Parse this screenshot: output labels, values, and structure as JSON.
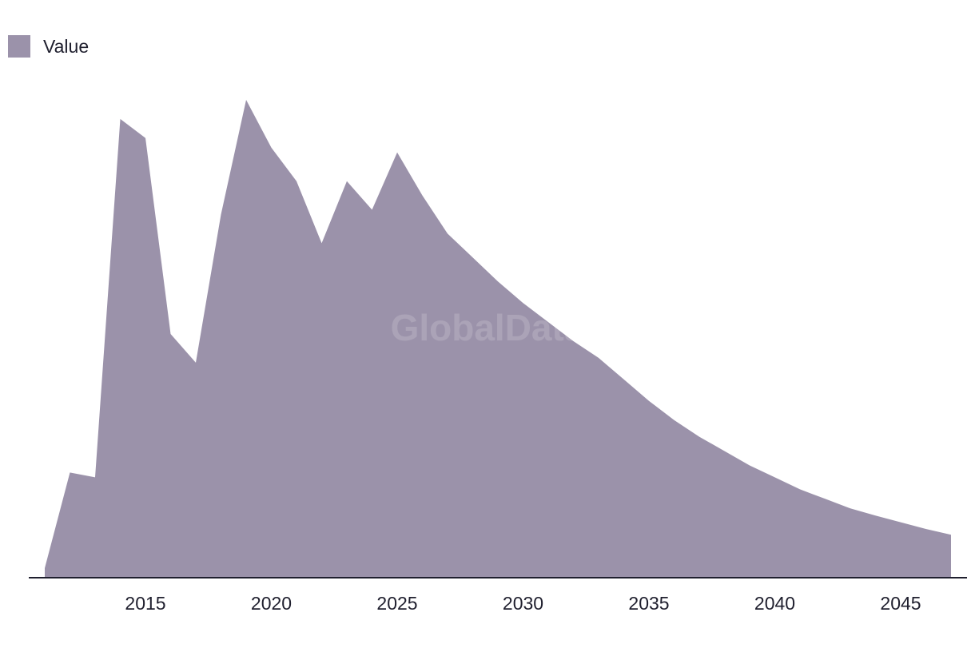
{
  "legend": {
    "label": "Value"
  },
  "watermark": "GlobalData",
  "colors": {
    "area": "#9b92aa",
    "axis": "#1f1f2e"
  },
  "chart_data": {
    "type": "area",
    "title": "",
    "xlabel": "",
    "ylabel": "",
    "ylim": [
      0,
      100
    ],
    "x_ticks": [
      2015,
      2020,
      2025,
      2030,
      2035,
      2040,
      2045
    ],
    "series": [
      {
        "name": "Value",
        "x": [
          2011,
          2012,
          2013,
          2014,
          2015,
          2016,
          2017,
          2018,
          2019,
          2020,
          2021,
          2022,
          2023,
          2024,
          2025,
          2026,
          2027,
          2028,
          2029,
          2030,
          2031,
          2032,
          2033,
          2034,
          2035,
          2036,
          2037,
          2038,
          2039,
          2040,
          2041,
          2042,
          2043,
          2044,
          2045,
          2046,
          2047
        ],
        "values": [
          2,
          22,
          21,
          96,
          92,
          51,
          45,
          76,
          100,
          90,
          83,
          70,
          83,
          77,
          89,
          80,
          72,
          67,
          62,
          57.5,
          53.5,
          49.5,
          46,
          41.5,
          37,
          33,
          29.5,
          26.5,
          23.5,
          21,
          18.5,
          16.5,
          14.5,
          13,
          11.6,
          10.2,
          9
        ]
      }
    ],
    "grid": false,
    "legend_position": "top-left"
  }
}
